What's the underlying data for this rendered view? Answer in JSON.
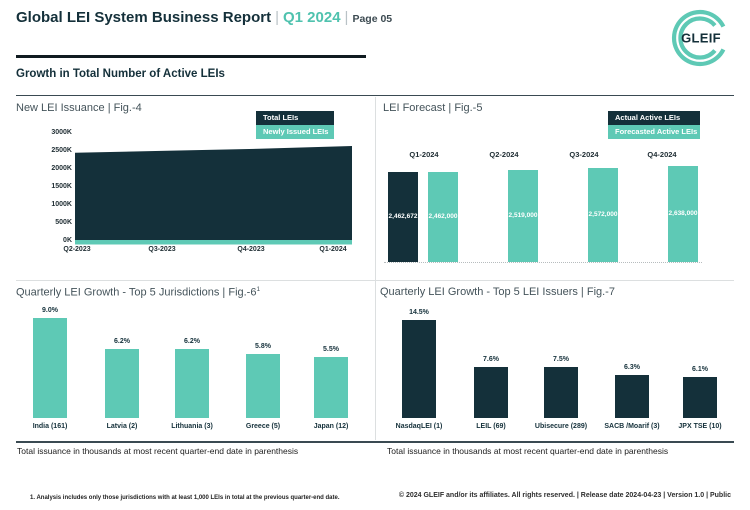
{
  "header": {
    "title": "Global LEI System Business Report",
    "period": "Q1 2024",
    "page": "Page 05",
    "separator": "|",
    "logo_text": "GLEIF",
    "section_heading": "Growth in Total Number of Active LEIs"
  },
  "colors": {
    "brand_teal": "#5EC9B5",
    "brand_dark": "#14303A"
  },
  "chart_data": [
    {
      "id": "fig4",
      "type": "area",
      "title": "New LEI Issuance | Fig.-4",
      "legend": [
        {
          "label": "Total LEIs",
          "color": "#14303A"
        },
        {
          "label": "Newly Issued LEIs",
          "color": "#5EC9B5"
        }
      ],
      "x": [
        "Q2-2023",
        "Q3-2023",
        "Q4-2023",
        "Q1-2024"
      ],
      "y_ticks": [
        "3000K",
        "2500K",
        "2000K",
        "1500K",
        "1000K",
        "500K",
        "0K"
      ],
      "ylim_thousands": [
        0,
        3000
      ],
      "series": [
        {
          "name": "Total LEIs",
          "values_thousands": [
            2450,
            2505,
            2560,
            2640
          ]
        },
        {
          "name": "Newly Issued LEIs",
          "values_thousands": [
            60,
            60,
            60,
            62
          ]
        }
      ]
    },
    {
      "id": "fig5",
      "type": "bar",
      "title": "LEI Forecast | Fig.-5",
      "legend": [
        {
          "label": "Actual Active LEIs",
          "color": "#14303A"
        },
        {
          "label": "Forecasted Active LEIs",
          "color": "#5EC9B5"
        }
      ],
      "categories": [
        "Q1-2024",
        "Q2-2024",
        "Q3-2024",
        "Q4-2024"
      ],
      "bars": [
        {
          "category": "Q1-2024",
          "series": "actual",
          "value": 2462672,
          "label": "2,462,672"
        },
        {
          "category": "Q1-2024",
          "series": "forecast",
          "value": 2462000,
          "label": "2,462,000"
        },
        {
          "category": "Q2-2024",
          "series": "forecast",
          "value": 2519000,
          "label": "2,519,000"
        },
        {
          "category": "Q3-2024",
          "series": "forecast",
          "value": 2572000,
          "label": "2,572,000"
        },
        {
          "category": "Q4-2024",
          "series": "forecast",
          "value": 2638000,
          "label": "2,638,000"
        }
      ]
    },
    {
      "id": "fig6",
      "type": "bar",
      "title": "Quarterly LEI Growth - Top 5 Jurisdictions | Fig.-6",
      "title_superscript": "1",
      "categories": [
        "India (161)",
        "Latvia (2)",
        "Lithuania (3)",
        "Greece (5)",
        "Japan (12)"
      ],
      "values_percent": [
        9.0,
        6.2,
        6.2,
        5.8,
        5.5
      ],
      "value_labels": [
        "9.0%",
        "6.2%",
        "6.2%",
        "5.8%",
        "5.5%"
      ],
      "bar_color": "#5EC9B5",
      "note": "Total issuance in thousands at most recent quarter-end date in parenthesis"
    },
    {
      "id": "fig7",
      "type": "bar",
      "title": "Quarterly LEI Growth - Top 5 LEI Issuers | Fig.-7",
      "categories": [
        "NasdaqLEI (1)",
        "LEIL (69)",
        "Ubisecure (289)",
        "SACB /Moarif (3)",
        "JPX TSE (10)"
      ],
      "values_percent": [
        14.5,
        7.6,
        7.5,
        6.3,
        6.1
      ],
      "value_labels": [
        "14.5%",
        "7.6%",
        "7.5%",
        "6.3%",
        "6.1%"
      ],
      "bar_color": "#14303A",
      "note": "Total issuance in thousands at most recent quarter-end date in parenthesis"
    }
  ],
  "footer": {
    "footnote": "1. Analysis includes only those jurisdictions with at least 1,000 LEIs in total at the previous quarter-end date.",
    "copyright": "© 2024 GLEIF and/or its affiliates. All rights reserved. | Release date 2024-04-23 | Version 1.0 | Public"
  }
}
